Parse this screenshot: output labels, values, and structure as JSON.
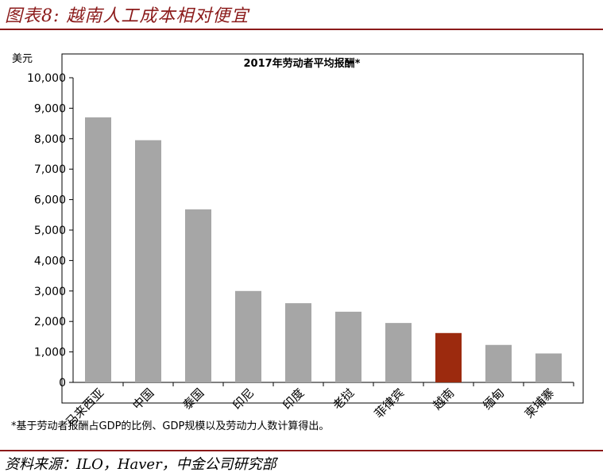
{
  "figure": {
    "title": "图表8: 越南人工成本相对便宜",
    "source": "资料来源：ILO，Haver，中金公司研究部",
    "footnote": "*基于劳动者报酬占GDP的比例、GDP规模以及劳动力人数计算得出。"
  },
  "chart_data": {
    "type": "bar",
    "title": "2017年劳动者平均报酬*",
    "ylabel": "美元",
    "xlabel": "",
    "ylim": [
      0,
      10000
    ],
    "yticks": [
      0,
      1000,
      2000,
      3000,
      4000,
      5000,
      6000,
      7000,
      8000,
      9000,
      10000
    ],
    "ytick_labels": [
      "0",
      "1,000",
      "2,000",
      "3,000",
      "4,000",
      "5,000",
      "6,000",
      "7,000",
      "8,000",
      "9,000",
      "10,000"
    ],
    "categories": [
      "马来西亚",
      "中国",
      "泰国",
      "印尼",
      "印度",
      "老挝",
      "菲律宾",
      "越南",
      "缅甸",
      "柬埔寨"
    ],
    "values": [
      8700,
      7950,
      5680,
      3000,
      2600,
      2320,
      1950,
      1620,
      1230,
      950
    ],
    "highlight_category": "越南",
    "colors": {
      "bar": "#a6a6a6",
      "highlight": "#9c2a0e",
      "axis": "#000000",
      "frame": "#000000"
    },
    "grid": false,
    "legend": "none"
  }
}
